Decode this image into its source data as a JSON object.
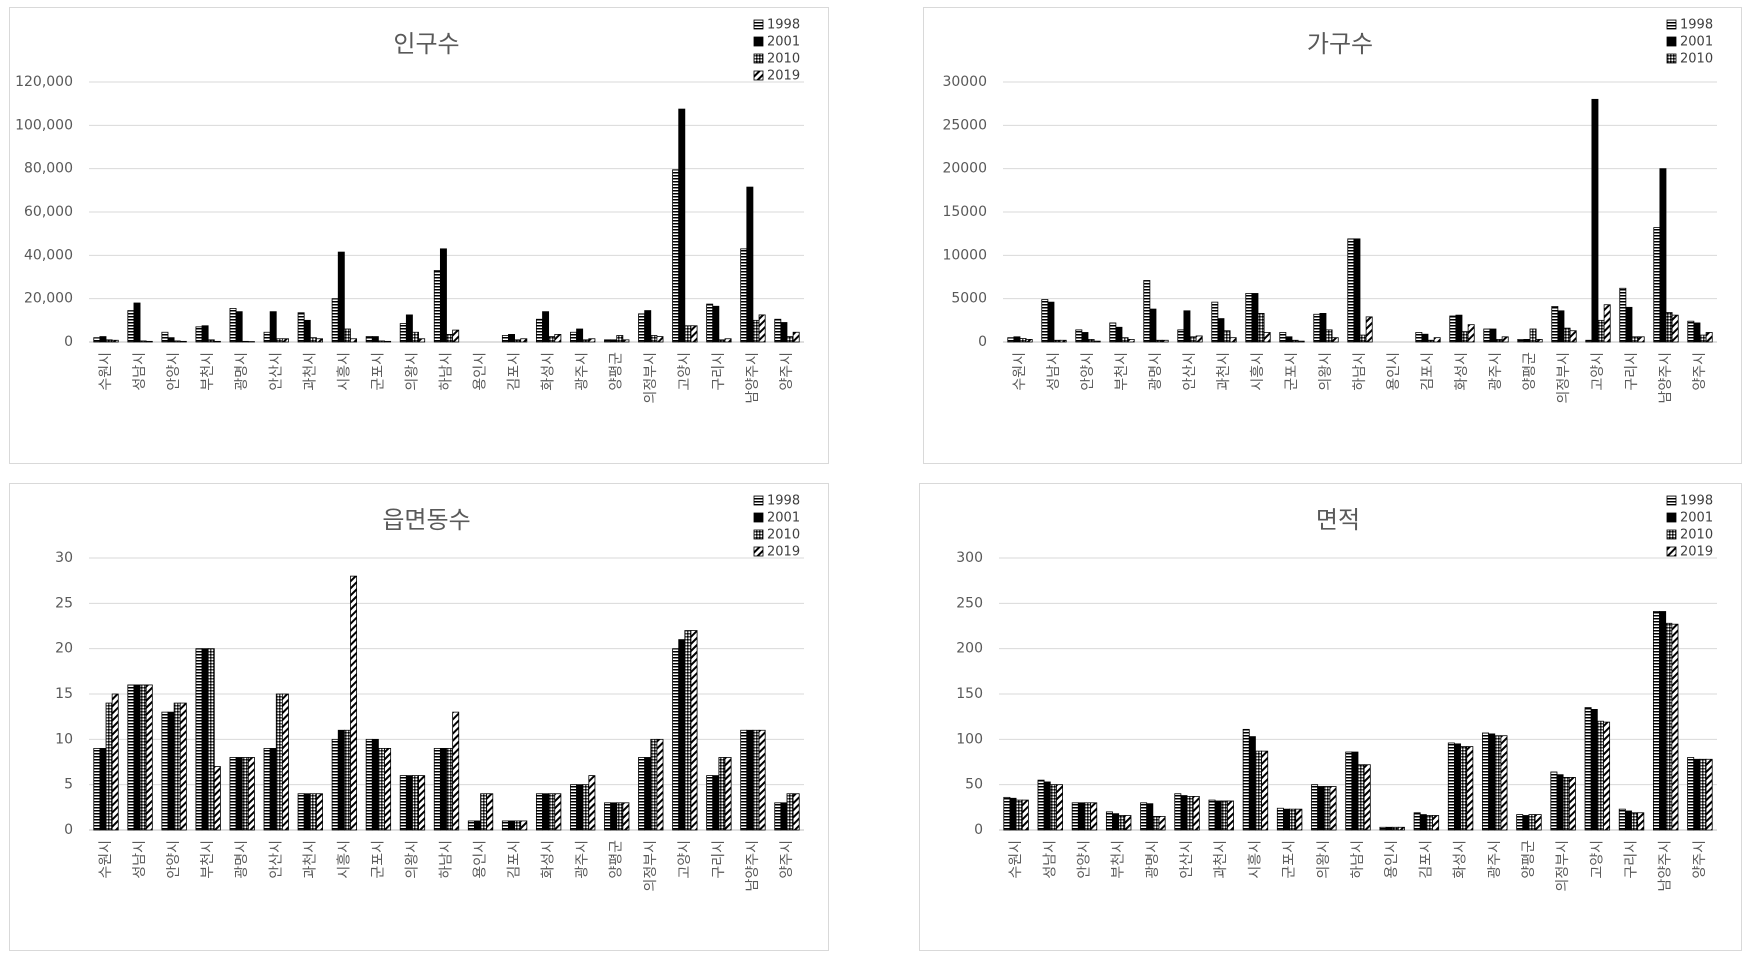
{
  "chart_data": [
    {
      "type": "bar",
      "title": "인구수",
      "categories": [
        "수원시",
        "성남시",
        "안양시",
        "부천시",
        "광명시",
        "안산시",
        "과천시",
        "시흥시",
        "군포시",
        "의왕시",
        "하남시",
        "용인시",
        "김포시",
        "화성시",
        "광주시",
        "양평군",
        "의정부시",
        "고양시",
        "구리시",
        "남양주시",
        "양주시"
      ],
      "series": [
        {
          "name": "1998",
          "color": "#000000",
          "pattern": "hstripe",
          "values": [
            2000,
            14500,
            4500,
            7000,
            15500,
            4500,
            13500,
            20000,
            2500,
            8500,
            33000,
            0,
            3000,
            10500,
            4500,
            1000,
            13000,
            79500,
            17500,
            43000,
            10500
          ]
        },
        {
          "name": "2001",
          "color": "#000000",
          "pattern": "solid",
          "values": [
            2500,
            18000,
            2000,
            7500,
            14000,
            14000,
            10000,
            41500,
            2500,
            12500,
            43000,
            0,
            3500,
            14000,
            6000,
            1000,
            14500,
            107500,
            16500,
            71500,
            9000
          ]
        },
        {
          "name": "2010",
          "color": "#000000",
          "pattern": "cross",
          "values": [
            1000,
            500,
            500,
            1000,
            300,
            1500,
            2000,
            6000,
            500,
            4500,
            3500,
            0,
            1000,
            2500,
            1000,
            3000,
            3000,
            7500,
            1000,
            10000,
            2500
          ]
        },
        {
          "name": "2019",
          "color": "#000000",
          "pattern": "diagonal",
          "values": [
            800,
            300,
            300,
            300,
            200,
            1500,
            1500,
            1500,
            300,
            1500,
            5500,
            0,
            1500,
            3500,
            1500,
            1000,
            2500,
            7500,
            1500,
            12500,
            4500
          ]
        }
      ],
      "ylim": [
        0,
        120000
      ],
      "yticks": [
        0,
        {
          "value": 20000,
          "label": "20,000"
        },
        {
          "value": 40000,
          "label": "40,000"
        },
        {
          "value": 60000,
          "label": "60,000"
        },
        {
          "value": 80000,
          "label": "80,000"
        },
        {
          "value": 100000,
          "label": "100,000"
        },
        {
          "value": 120000,
          "label": "120,000"
        }
      ],
      "grid": true,
      "legend": "upper right"
    },
    {
      "type": "bar",
      "title": "가구수",
      "categories": [
        "수원시",
        "성남시",
        "안양시",
        "부천시",
        "광명시",
        "안산시",
        "과천시",
        "시흥시",
        "군포시",
        "의왕시",
        "하남시",
        "용인시",
        "김포시",
        "화성시",
        "광주시",
        "양평군",
        "의정부시",
        "고양시",
        "구리시",
        "남양주시",
        "양주시"
      ],
      "series": [
        {
          "name": "1998",
          "color": "#000000",
          "pattern": "hstripe",
          "values": [
            500,
            4900,
            1400,
            2200,
            7100,
            1400,
            4600,
            5600,
            1100,
            3200,
            11900,
            0,
            1100,
            3000,
            1500,
            300,
            4100,
            200,
            6200,
            13200,
            2400
          ]
        },
        {
          "name": "2001",
          "color": "#000000",
          "pattern": "solid",
          "values": [
            600,
            4600,
            1100,
            1700,
            3800,
            3600,
            2700,
            5600,
            600,
            3300,
            11900,
            0,
            900,
            3100,
            1500,
            300,
            3600,
            28000,
            4000,
            20000,
            2200
          ]
        },
        {
          "name": "2010",
          "color": "#000000",
          "pattern": "cross",
          "values": [
            400,
            200,
            300,
            500,
            200,
            600,
            1300,
            3300,
            200,
            1400,
            800,
            0,
            200,
            1200,
            300,
            1500,
            1600,
            2500,
            600,
            3400,
            800
          ]
        },
        {
          "color": "#000000",
          "pattern": "diagonal",
          "values": [
            300,
            200,
            100,
            300,
            200,
            700,
            500,
            1100,
            100,
            500,
            2900,
            0,
            500,
            2000,
            600,
            300,
            1300,
            4300,
            600,
            3100,
            1100
          ]
        }
      ],
      "ylim": [
        0,
        30000
      ],
      "yticks": [
        0,
        5000,
        10000,
        15000,
        20000,
        25000,
        30000
      ],
      "grid": true,
      "legend": "upper right"
    },
    {
      "type": "bar",
      "title": "읍면동수",
      "categories": [
        "수원시",
        "성남시",
        "안양시",
        "부천시",
        "광명시",
        "안산시",
        "과천시",
        "시흥시",
        "군포시",
        "의왕시",
        "하남시",
        "용인시",
        "김포시",
        "화성시",
        "광주시",
        "양평군",
        "의정부시",
        "고양시",
        "구리시",
        "남양주시",
        "양주시"
      ],
      "series": [
        {
          "name": "1998",
          "color": "#000000",
          "pattern": "hstripe",
          "values": [
            9,
            16,
            13,
            20,
            8,
            9,
            4,
            10,
            10,
            6,
            9,
            1,
            1,
            4,
            5,
            3,
            8,
            20,
            6,
            11,
            3
          ]
        },
        {
          "name": "2001",
          "color": "#000000",
          "pattern": "solid",
          "values": [
            9,
            16,
            13,
            20,
            8,
            9,
            4,
            11,
            10,
            6,
            9,
            1,
            1,
            4,
            5,
            3,
            8,
            21,
            6,
            11,
            3
          ]
        },
        {
          "name": "2010",
          "color": "#000000",
          "pattern": "cross",
          "values": [
            14,
            16,
            14,
            20,
            8,
            15,
            4,
            11,
            9,
            6,
            9,
            4,
            1,
            4,
            5,
            3,
            10,
            22,
            8,
            11,
            4
          ]
        },
        {
          "name": "2019",
          "color": "#000000",
          "pattern": "diagonal",
          "values": [
            15,
            16,
            14,
            7,
            8,
            15,
            4,
            28,
            9,
            6,
            13,
            4,
            1,
            4,
            6,
            3,
            10,
            22,
            8,
            11,
            4
          ]
        }
      ],
      "ylim": [
        0,
        30
      ],
      "yticks": [
        0,
        5,
        10,
        15,
        20,
        25,
        30
      ],
      "grid": true,
      "legend": "upper right"
    },
    {
      "type": "bar",
      "title": "면적",
      "categories": [
        "수원시",
        "성남시",
        "안양시",
        "부천시",
        "광명시",
        "안산시",
        "과천시",
        "시흥시",
        "군포시",
        "의왕시",
        "하남시",
        "용인시",
        "김포시",
        "화성시",
        "광주시",
        "양평군",
        "의정부시",
        "고양시",
        "구리시",
        "남양주시",
        "양주시"
      ],
      "series": [
        {
          "name": "1998",
          "color": "#000000",
          "pattern": "hstripe",
          "values": [
            36,
            55,
            30,
            20,
            30,
            40,
            33,
            111,
            24,
            50,
            86,
            3,
            19,
            96,
            107,
            17,
            64,
            135,
            23,
            241,
            80
          ]
        },
        {
          "name": "2001",
          "color": "#000000",
          "pattern": "solid",
          "values": [
            35,
            53,
            30,
            18,
            29,
            38,
            32,
            103,
            23,
            48,
            86,
            3,
            17,
            95,
            106,
            16,
            61,
            133,
            21,
            241,
            78
          ]
        },
        {
          "name": "2010",
          "color": "#000000",
          "pattern": "cross",
          "values": [
            33,
            50,
            30,
            16,
            15,
            37,
            32,
            87,
            23,
            48,
            72,
            3,
            16,
            92,
            104,
            17,
            58,
            120,
            19,
            228,
            78
          ]
        },
        {
          "name": "2019",
          "color": "#000000",
          "pattern": "diagonal",
          "values": [
            33,
            50,
            30,
            16,
            15,
            37,
            32,
            87,
            23,
            48,
            72,
            3,
            16,
            92,
            104,
            17,
            58,
            119,
            19,
            227,
            78
          ]
        }
      ],
      "ylim": [
        0,
        300
      ],
      "yticks": [
        0,
        50,
        100,
        150,
        200,
        250,
        300
      ],
      "grid": true,
      "legend": "upper right"
    }
  ]
}
